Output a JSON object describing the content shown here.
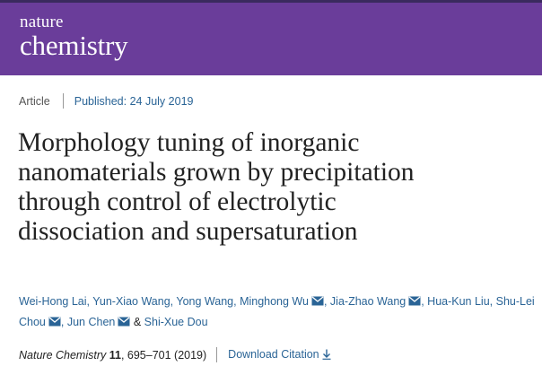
{
  "header": {
    "logo_line1": "nature",
    "logo_line2": "chemistry",
    "brand_color": "#6a3d9a"
  },
  "meta": {
    "type": "Article",
    "published": "Published: 24 July 2019"
  },
  "title": {
    "line1": "Morphology tuning of inorganic",
    "line2": "nanomaterials grown by precipitation",
    "line3": "through control of electrolytic",
    "line4": "dissociation and supersaturation"
  },
  "authors": [
    {
      "name": "Wei-Hong Lai",
      "sep": ", "
    },
    {
      "name": "Yun-Xiao Wang",
      "sep": ", "
    },
    {
      "name": "Yong Wang",
      "sep": ", "
    },
    {
      "name": "Minghong Wu",
      "sep": ", "
    },
    {
      "name": "Jia-Zhao Wang",
      "sep": ", "
    },
    {
      "name": "Hua-Kun Liu",
      "sep": ", "
    },
    {
      "name": "Shu-Lei Chou",
      "sep": ", "
    },
    {
      "name": "Jun Chen",
      "sep": " & "
    },
    {
      "name": "Shi-Xue Dou",
      "sep": ""
    }
  ],
  "citation": {
    "journal": "Nature Chemistry",
    "volume": "11",
    "pages": ", 695–701 (2019)",
    "download_label": "Download Citation"
  },
  "icons": {
    "mail": "mail-icon",
    "download": "download-icon"
  },
  "colors": {
    "link": "#2a6496"
  }
}
